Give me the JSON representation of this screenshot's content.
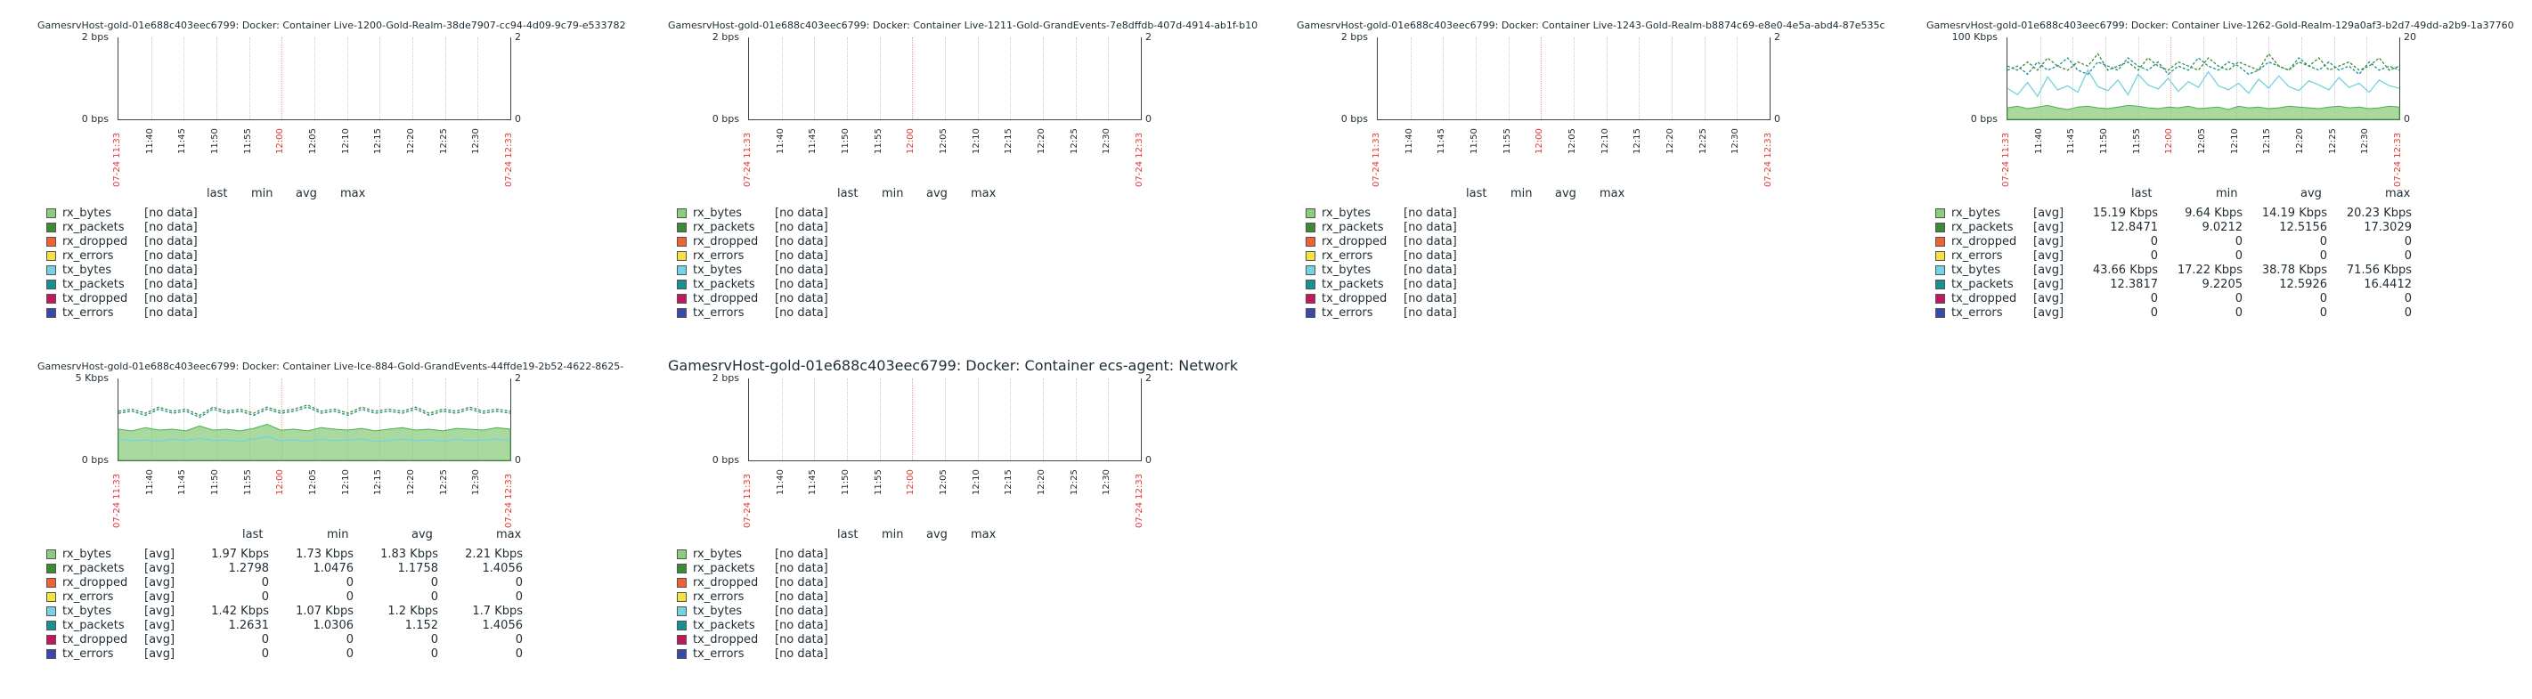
{
  "legend_items": [
    {
      "name": "rx_bytes",
      "color": "#8ccc7f"
    },
    {
      "name": "rx_packets",
      "color": "#3d8a34"
    },
    {
      "name": "rx_dropped",
      "color": "#f06233"
    },
    {
      "name": "rx_errors",
      "color": "#f5e342"
    },
    {
      "name": "tx_bytes",
      "color": "#73d3e0"
    },
    {
      "name": "tx_packets",
      "color": "#1a8f8f"
    },
    {
      "name": "tx_dropped",
      "color": "#c2185b"
    },
    {
      "name": "tx_errors",
      "color": "#3949ab"
    }
  ],
  "stat_headers": [
    "last",
    "min",
    "avg",
    "max"
  ],
  "x_ticks": [
    "07-24 11:33",
    "11:40",
    "11:45",
    "11:50",
    "11:55",
    "12:00",
    "12:05",
    "12:10",
    "12:15",
    "12:20",
    "12:25",
    "12:30",
    "07-24 12:33"
  ],
  "panels": [
    {
      "title": "GamesrvHost-gold-01e688c403eec6799: Docker: Container Live-1200-Gold-Realm-38de7907-cc94-4d09-9c79-e533782",
      "y_top": "2 bps",
      "y_bottom": "0 bps",
      "y_right_top": "2",
      "y_right_bottom": "0",
      "no_data": "[no data]"
    },
    {
      "title": "GamesrvHost-gold-01e688c403eec6799: Docker: Container Live-1211-Gold-GrandEvents-7e8dffdb-407d-4914-ab1f-b10",
      "y_top": "2 bps",
      "y_bottom": "0 bps",
      "y_right_top": "2",
      "y_right_bottom": "0",
      "no_data": "[no data]"
    },
    {
      "title": "GamesrvHost-gold-01e688c403eec6799: Docker: Container Live-1243-Gold-Realm-b8874c69-e8e0-4e5a-abd4-87e535c",
      "y_top": "2 bps",
      "y_bottom": "0 bps",
      "y_right_top": "2",
      "y_right_bottom": "0",
      "no_data": "[no data]"
    },
    {
      "title": "GamesrvHost-gold-01e688c403eec6799: Docker: Container Live-1262-Gold-Realm-129a0af3-b2d7-49dd-a2b9-1a37760",
      "y_top": "100 Kbps",
      "y_bottom": "0 bps",
      "y_right_top": "20",
      "y_right_bottom": "0",
      "fn": "[avg]",
      "stats": [
        [
          "15.19 Kbps",
          "9.64 Kbps",
          "14.19 Kbps",
          "20.23 Kbps"
        ],
        [
          "12.8471",
          "9.0212",
          "12.5156",
          "17.3029"
        ],
        [
          "0",
          "0",
          "0",
          "0"
        ],
        [
          "0",
          "0",
          "0",
          "0"
        ],
        [
          "43.66 Kbps",
          "17.22 Kbps",
          "38.78 Kbps",
          "71.56 Kbps"
        ],
        [
          "12.3817",
          "9.2205",
          "12.5926",
          "16.4412"
        ],
        [
          "0",
          "0",
          "0",
          "0"
        ],
        [
          "0",
          "0",
          "0",
          "0"
        ]
      ]
    },
    {
      "title": "GamesrvHost-gold-01e688c403eec6799: Docker: Container Live-Ice-884-Gold-GrandEvents-44ffde19-2b52-4622-8625-",
      "y_top": "5 Kbps",
      "y_bottom": "0 bps",
      "y_right_top": "2",
      "y_right_bottom": "0",
      "fn": "[avg]",
      "stats": [
        [
          "1.97 Kbps",
          "1.73 Kbps",
          "1.83 Kbps",
          "2.21 Kbps"
        ],
        [
          "1.2798",
          "1.0476",
          "1.1758",
          "1.4056"
        ],
        [
          "0",
          "0",
          "0",
          "0"
        ],
        [
          "0",
          "0",
          "0",
          "0"
        ],
        [
          "1.42 Kbps",
          "1.07 Kbps",
          "1.2 Kbps",
          "1.7 Kbps"
        ],
        [
          "1.2631",
          "1.0306",
          "1.152",
          "1.4056"
        ],
        [
          "0",
          "0",
          "0",
          "0"
        ],
        [
          "0",
          "0",
          "0",
          "0"
        ]
      ]
    },
    {
      "title": "GamesrvHost-gold-01e688c403eec6799: Docker: Container ecs-agent: Network",
      "y_top": "2 bps",
      "y_bottom": "0 bps",
      "y_right_top": "2",
      "y_right_bottom": "0",
      "no_data": "[no data]"
    }
  ],
  "chart_data": [
    {
      "type": "line",
      "title": "GamesrvHost-gold-01e688c403eec6799: Docker: Container Live-1200-Gold-Realm-38de7907-cc94-4d09-9c79-e533782",
      "ylim": [
        0,
        2
      ],
      "series": []
    },
    {
      "type": "line",
      "title": "GamesrvHost-gold-01e688c403eec6799: Docker: Container Live-1211-Gold-GrandEvents-7e8dffdb-407d-4914-ab1f-b10",
      "ylim": [
        0,
        2
      ],
      "series": []
    },
    {
      "type": "line",
      "title": "GamesrvHost-gold-01e688c403eec6799: Docker: Container Live-1243-Gold-Realm-b8874c69-e8e0-4e5a-abd4-87e535c",
      "ylim": [
        0,
        2
      ],
      "series": []
    },
    {
      "type": "area",
      "title": "GamesrvHost-gold-01e688c403eec6799: Docker: Container Live-1262-Gold-Realm-129a0af3-b2d7-49dd-a2b9-1a37760",
      "ylim": [
        0,
        100
      ],
      "y_right_lim": [
        0,
        20
      ],
      "series": [
        {
          "name": "rx_bytes",
          "values": [
            14,
            16,
            13,
            15,
            17,
            14,
            12,
            15,
            16,
            14,
            13,
            15,
            17,
            16,
            14,
            13,
            15,
            14,
            16,
            13,
            14,
            15,
            12,
            16,
            14,
            15,
            13,
            14,
            16,
            15,
            14,
            13,
            15,
            16,
            14,
            15,
            13,
            14,
            16,
            15
          ]
        },
        {
          "name": "tx_bytes",
          "values": [
            38,
            30,
            45,
            28,
            52,
            36,
            41,
            33,
            60,
            40,
            35,
            48,
            30,
            55,
            42,
            37,
            50,
            34,
            46,
            39,
            58,
            41,
            36,
            44,
            32,
            49,
            38,
            53,
            40,
            35,
            47,
            42,
            36,
            51,
            39,
            44,
            33,
            48,
            41,
            38
          ]
        },
        {
          "name": "tx_packets",
          "values": [
            12,
            13,
            11,
            14,
            12,
            13,
            15,
            12,
            11,
            14,
            13,
            12,
            15,
            13,
            12,
            14,
            11,
            13,
            12,
            15,
            13,
            12,
            14,
            13,
            11,
            12,
            14,
            13,
            12,
            15,
            13,
            12,
            14,
            12,
            13,
            11,
            14,
            12,
            13,
            12
          ]
        },
        {
          "name": "rx_packets",
          "values": [
            13,
            12,
            14,
            12,
            15,
            13,
            12,
            14,
            13,
            16,
            12,
            13,
            14,
            12,
            15,
            13,
            12,
            14,
            13,
            12,
            15,
            13,
            12,
            14,
            13,
            12,
            16,
            13,
            12,
            14,
            13,
            15,
            12,
            13,
            14,
            12,
            13,
            15,
            12,
            13
          ]
        }
      ]
    },
    {
      "type": "area",
      "title": "GamesrvHost-gold-01e688c403eec6799: Docker: Container Live-Ice-884-Gold-GrandEvents-44ffde19-2b52-4622-8625-",
      "ylim": [
        0,
        5
      ],
      "y_right_lim": [
        0,
        2
      ],
      "series": [
        {
          "name": "rx_bytes",
          "values": [
            1.9,
            1.8,
            2.0,
            1.85,
            1.9,
            1.8,
            2.1,
            1.85,
            1.9,
            1.8,
            1.95,
            2.2,
            1.85,
            1.9,
            1.8,
            2.0,
            1.9,
            1.85,
            1.95,
            1.8,
            1.9,
            2.0,
            1.85,
            1.9,
            1.8,
            1.95,
            1.9,
            1.85,
            2.0,
            1.9
          ]
        },
        {
          "name": "tx_bytes",
          "values": [
            1.3,
            1.2,
            1.25,
            1.15,
            1.3,
            1.2,
            1.35,
            1.2,
            1.25,
            1.15,
            1.3,
            1.45,
            1.2,
            1.25,
            1.15,
            1.3,
            1.2,
            1.25,
            1.3,
            1.15,
            1.2,
            1.3,
            1.2,
            1.25,
            1.15,
            1.3,
            1.2,
            1.25,
            1.3,
            1.2
          ]
        },
        {
          "name": "rx_packets",
          "values": [
            1.2,
            1.25,
            1.15,
            1.3,
            1.2,
            1.25,
            1.1,
            1.3,
            1.2,
            1.25,
            1.15,
            1.3,
            1.2,
            1.25,
            1.35,
            1.2,
            1.25,
            1.15,
            1.3,
            1.2,
            1.25,
            1.2,
            1.3,
            1.15,
            1.25,
            1.2,
            1.3,
            1.2,
            1.25,
            1.2
          ]
        },
        {
          "name": "tx_packets",
          "values": [
            1.15,
            1.2,
            1.1,
            1.25,
            1.15,
            1.2,
            1.05,
            1.25,
            1.15,
            1.2,
            1.1,
            1.25,
            1.15,
            1.2,
            1.3,
            1.15,
            1.2,
            1.1,
            1.25,
            1.15,
            1.2,
            1.15,
            1.25,
            1.1,
            1.2,
            1.15,
            1.25,
            1.15,
            1.2,
            1.15
          ]
        }
      ]
    },
    {
      "type": "line",
      "title": "GamesrvHost-gold-01e688c403eec6799: Docker: Container ecs-agent: Network",
      "ylim": [
        0,
        2
      ],
      "series": []
    }
  ]
}
